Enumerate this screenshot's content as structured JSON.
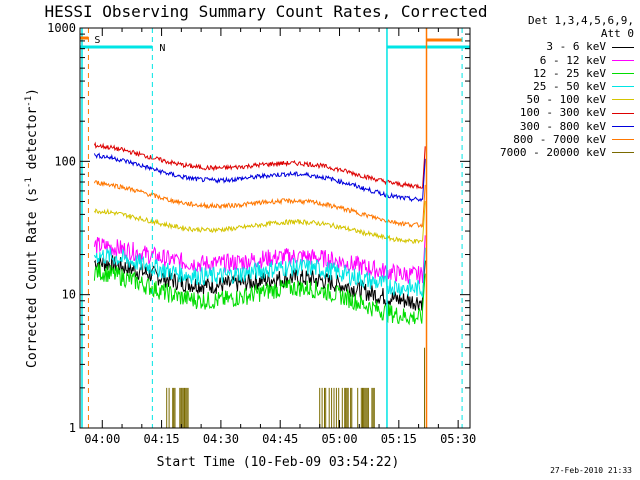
{
  "chart_data": {
    "type": "line",
    "title": "HESSI Observing Summary Count Rates, Corrected",
    "xlabel": "Start Time (10-Feb-09 03:54:22)",
    "ylabel_text": "Corrected Count Rate (s",
    "ylabel_sup1": "-1",
    "ylabel_mid": " detector",
    "ylabel_sup2": "-1",
    "ylabel_end": ")",
    "y_scale": "log",
    "ylim": [
      1,
      1000
    ],
    "xlim": [
      "03:54:22",
      "05:33:00"
    ],
    "x_ticks": [
      "04:00",
      "04:15",
      "04:30",
      "04:45",
      "05:00",
      "05:15",
      "05:30"
    ],
    "y_ticks": [
      "1",
      "10",
      "100",
      "1000"
    ],
    "grid": false,
    "legend_header": [
      "Det 1,3,4,5,6,9,",
      "Att 0"
    ],
    "legend_position": "right",
    "markers": {
      "s_label": "S",
      "n_label": "N",
      "saa_start": "03:56:30",
      "saa_end": "04:12:40",
      "night_start": "05:12:00",
      "night_end": "05:31:00",
      "flare_line": "05:22:00"
    },
    "series": [
      {
        "name": "3 - 6 keV",
        "color": "#000000",
        "start": 15.5,
        "mid_low": 9.5,
        "peak": 13.0,
        "end": 10.0
      },
      {
        "name": "6 - 12 keV",
        "color": "#ff00ff",
        "start": 21.0,
        "mid_low": 14.5,
        "peak": 19.0,
        "end": 15.5
      },
      {
        "name": "12 - 25 keV",
        "color": "#00dd00",
        "start": 12.5,
        "mid_low": 8.0,
        "peak": 12.5,
        "end": 8.0
      },
      {
        "name": "25 - 50 keV",
        "color": "#00e5e5",
        "start": 17.5,
        "mid_low": 12.0,
        "peak": 16.5,
        "end": 12.5
      },
      {
        "name": "50 - 100 keV",
        "color": "#d4c400",
        "start": 38.0,
        "mid_low": 27.0,
        "peak": 36.0,
        "end": 28.0
      },
      {
        "name": "100 - 300 keV",
        "color": "#dd0000",
        "start": 118.0,
        "mid_low": 76.0,
        "peak": 100.0,
        "end": 72.0
      },
      {
        "name": "300 - 800 keV",
        "color": "#0000dd",
        "start": 98.0,
        "mid_low": 62.0,
        "peak": 85.0,
        "end": 58.0
      },
      {
        "name": "800 - 7000 keV",
        "color": "#ff7700",
        "start": 62.0,
        "mid_low": 39.0,
        "peak": 52.0,
        "end": 37.0
      },
      {
        "name": "7000 - 20000 keV",
        "color": "#7a6a00",
        "start": 1.0,
        "mid_low": 1.0,
        "peak": 1.0,
        "end": 1.0
      }
    ]
  },
  "footer": {
    "timestamp": "27-Feb-2010 21:33"
  }
}
